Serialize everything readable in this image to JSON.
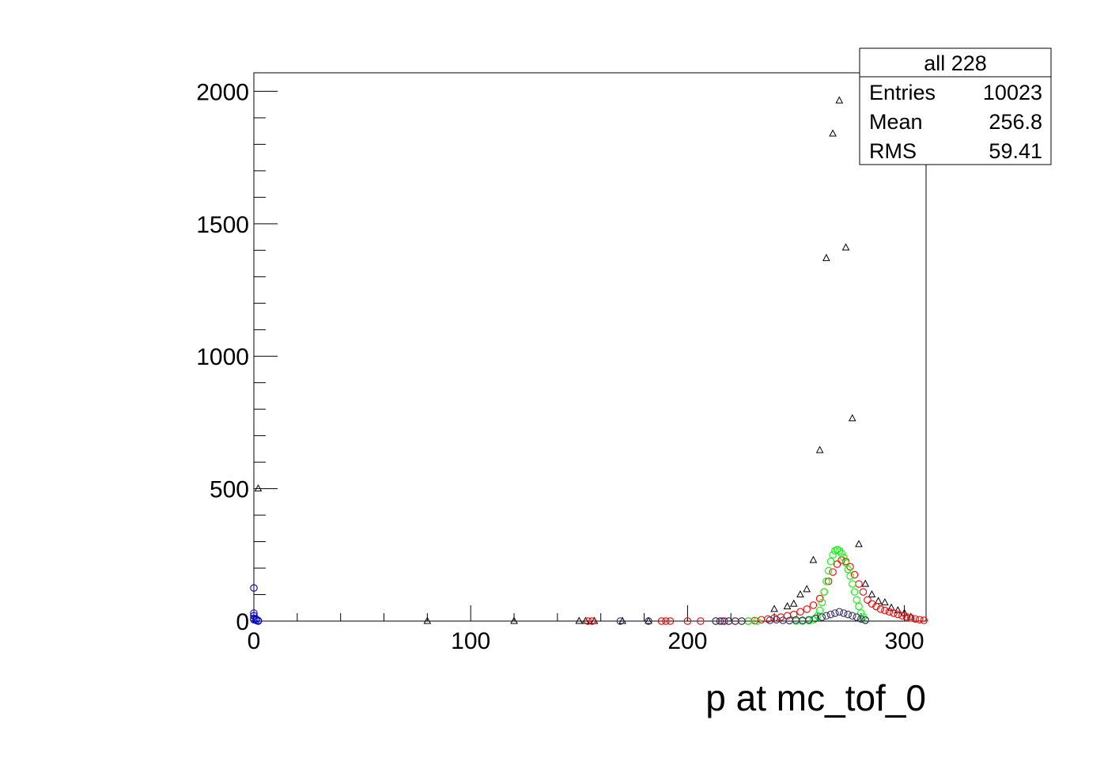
{
  "chart_data": {
    "type": "scatter",
    "xlabel": "p at mc_tof_0",
    "ylabel": "",
    "xlim": [
      0,
      310
    ],
    "ylim": [
      0,
      2070
    ],
    "x_ticks": [
      "0",
      "100",
      "200",
      "300"
    ],
    "y_ticks": [
      "0",
      "500",
      "1000",
      "1500",
      "2000"
    ],
    "grid": false,
    "stats_box": {
      "title": "all 228",
      "rows": [
        {
          "label": "Entries",
          "value": "10023"
        },
        {
          "label": "Mean",
          "value": "256.8"
        },
        {
          "label": "RMS",
          "value": "59.41"
        }
      ]
    },
    "series": [
      {
        "color": "#000000",
        "marker": "triangle-open",
        "points": [
          [
            2,
            500
          ],
          [
            80,
            0
          ],
          [
            120,
            0
          ],
          [
            150,
            0
          ],
          [
            153,
            0
          ],
          [
            157,
            0
          ],
          [
            170,
            0
          ],
          [
            182,
            0
          ],
          [
            240,
            45
          ],
          [
            246,
            55
          ],
          [
            249,
            65
          ],
          [
            252,
            100
          ],
          [
            255,
            120
          ],
          [
            258,
            230
          ],
          [
            261,
            645
          ],
          [
            264,
            1370
          ],
          [
            267,
            1840
          ],
          [
            270,
            1965
          ],
          [
            273,
            1410
          ],
          [
            276,
            765
          ],
          [
            279,
            290
          ],
          [
            282,
            140
          ],
          [
            285,
            100
          ],
          [
            288,
            75
          ],
          [
            291,
            70
          ],
          [
            294,
            50
          ],
          [
            297,
            40
          ],
          [
            300,
            30
          ],
          [
            303,
            15
          ]
        ]
      },
      {
        "color": "#ff0000",
        "marker": "circle-open",
        "points": [
          [
            154,
            0
          ],
          [
            156,
            0
          ],
          [
            188,
            0
          ],
          [
            190,
            0
          ],
          [
            192,
            0
          ],
          [
            200,
            0
          ],
          [
            206,
            0
          ],
          [
            213,
            0
          ],
          [
            216,
            0
          ],
          [
            219,
            0
          ],
          [
            222,
            0
          ],
          [
            225,
            0
          ],
          [
            228,
            0
          ],
          [
            231,
            2
          ],
          [
            234,
            5
          ],
          [
            237,
            8
          ],
          [
            240,
            12
          ],
          [
            243,
            15
          ],
          [
            246,
            20
          ],
          [
            249,
            25
          ],
          [
            252,
            35
          ],
          [
            255,
            45
          ],
          [
            258,
            60
          ],
          [
            261,
            85
          ],
          [
            263,
            110
          ],
          [
            265,
            150
          ],
          [
            267,
            185
          ],
          [
            269,
            215
          ],
          [
            271,
            230
          ],
          [
            273,
            225
          ],
          [
            275,
            205
          ],
          [
            277,
            175
          ],
          [
            279,
            140
          ],
          [
            281,
            110
          ],
          [
            283,
            80
          ],
          [
            285,
            65
          ],
          [
            287,
            55
          ],
          [
            289,
            45
          ],
          [
            291,
            40
          ],
          [
            293,
            35
          ],
          [
            295,
            30
          ],
          [
            297,
            25
          ],
          [
            299,
            20
          ],
          [
            301,
            16
          ],
          [
            303,
            12
          ],
          [
            305,
            8
          ],
          [
            307,
            5
          ],
          [
            309,
            3
          ]
        ]
      },
      {
        "color": "#00ff00",
        "marker": "circle-open",
        "points": [
          [
            228,
            0
          ],
          [
            232,
            0
          ],
          [
            250,
            0
          ],
          [
            253,
            0
          ],
          [
            256,
            2
          ],
          [
            258,
            5
          ],
          [
            259,
            10
          ],
          [
            260,
            20
          ],
          [
            261,
            40
          ],
          [
            262,
            70
          ],
          [
            263,
            110
          ],
          [
            264,
            150
          ],
          [
            265,
            190
          ],
          [
            266,
            225
          ],
          [
            267,
            250
          ],
          [
            268,
            265
          ],
          [
            269,
            270
          ],
          [
            270,
            265
          ],
          [
            271,
            255
          ],
          [
            272,
            240
          ],
          [
            273,
            220
          ],
          [
            274,
            195
          ],
          [
            275,
            170
          ],
          [
            276,
            140
          ],
          [
            277,
            110
          ],
          [
            278,
            80
          ],
          [
            279,
            55
          ],
          [
            280,
            30
          ],
          [
            281,
            15
          ],
          [
            282,
            5
          ]
        ]
      },
      {
        "color": "#0000cc",
        "marker": "circle-open",
        "points": [
          [
            0,
            125
          ],
          [
            0,
            30
          ],
          [
            0,
            20
          ],
          [
            0,
            10
          ],
          [
            0,
            5
          ],
          [
            1,
            8
          ],
          [
            1,
            3
          ],
          [
            2,
            2
          ],
          [
            2,
            0
          ]
        ]
      },
      {
        "color": "#333366",
        "marker": "circle-open",
        "points": [
          [
            169,
            0
          ],
          [
            182,
            0
          ],
          [
            213,
            0
          ],
          [
            215,
            0
          ],
          [
            217,
            0
          ],
          [
            219,
            0
          ],
          [
            222,
            0
          ],
          [
            225,
            0
          ],
          [
            238,
            3
          ],
          [
            241,
            5
          ],
          [
            244,
            3
          ],
          [
            247,
            2
          ],
          [
            250,
            4
          ],
          [
            253,
            3
          ],
          [
            256,
            5
          ],
          [
            259,
            10
          ],
          [
            262,
            15
          ],
          [
            264,
            20
          ],
          [
            266,
            25
          ],
          [
            268,
            30
          ],
          [
            270,
            35
          ],
          [
            272,
            30
          ],
          [
            274,
            25
          ],
          [
            276,
            20
          ],
          [
            278,
            15
          ],
          [
            280,
            8
          ],
          [
            282,
            3
          ]
        ]
      }
    ]
  }
}
